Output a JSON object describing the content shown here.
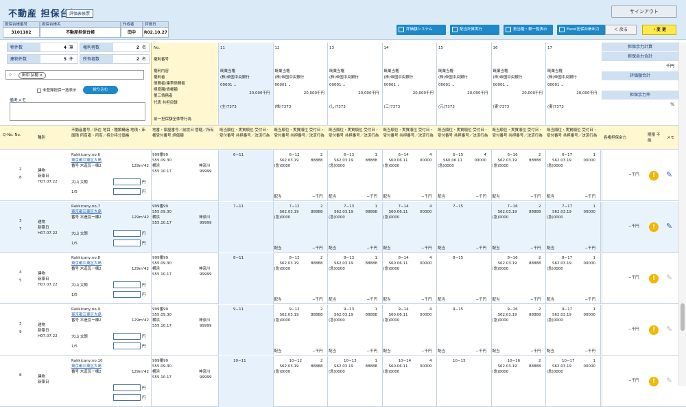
{
  "app": {
    "title": "不動産 担保台帳",
    "badge": "評価表帳票",
    "signout": "サインアウト"
  },
  "master": [
    {
      "label": "担保台帳番号",
      "value": "3101102"
    },
    {
      "label": "担保台帳名",
      "value": "不動産担保台帳"
    },
    {
      "label": "作成者",
      "value": "田中"
    },
    {
      "label": "評価日",
      "value": "R02.10.27"
    }
  ],
  "toolbar": {
    "btn1": "評価額システム",
    "btn2": "配当計算実行",
    "btn3": "抵当権・根一覧表示",
    "btn4": "Excel担保台帳出力",
    "back": "＜ 戻る",
    "change": "・変 更"
  },
  "stats": [
    {
      "k": "物件数",
      "n": "4",
      "u": "筆",
      "k2": "権利者数",
      "n2": "2",
      "u2": "名"
    },
    {
      "k": "建物件数",
      "n": "5",
      "u": "件",
      "k2": "所有者数",
      "n2": "2",
      "u2": "名"
    }
  ],
  "search": {
    "chip": "田中 弘樹 ×",
    "checkbox": "未登録担保一括表示",
    "narrow": "絞り込む",
    "memo_label": "備考メモ"
  },
  "colhead": {
    "no": "No.",
    "right_no": "権利番号",
    "lines": [
      "権利内容",
      "権利者",
      "債務者/連帯債務者",
      "極度額/債権額",
      "第三債務者",
      "代表 共担目録"
    ],
    "foot": "前一担保額全体等行為"
  },
  "cols": [
    {
      "n": "11",
      "a": "既業当権",
      "b": "(株)帝国中央銀行",
      "c": "00001",
      "amt": "20,000千円",
      "d": "(主)7373"
    },
    {
      "n": "12",
      "a": "既業当権",
      "b": "(株)帝国中央銀行",
      "c": "00001",
      "amt": "20,000千円",
      "d": "(株)7373"
    },
    {
      "n": "13",
      "a": "既業当権",
      "b": "(株)帝国中央銀行",
      "c": "00001",
      "amt": "20,000千円",
      "d": "(し)7373"
    },
    {
      "n": "14",
      "a": "既業当権",
      "b": "(株)帝国中央銀行",
      "c": "00001",
      "amt": "20,000千円",
      "d": "(三)7373"
    },
    {
      "n": "15",
      "a": "既業当権",
      "b": "(株)帝国中央銀行",
      "c": "00001",
      "amt": "20,000千円",
      "d": "(元)7373"
    },
    {
      "n": "16",
      "a": "既業当権",
      "b": "(株)帝国中央銀行",
      "c": "00001",
      "amt": "20,000千円",
      "d": "(妻)7373"
    },
    {
      "n": "17",
      "a": "既業当権",
      "b": "(株)帝国中央銀行",
      "c": "00001",
      "amt": "20,000千円",
      "d": "(妻)7373"
    }
  ],
  "subhead": {
    "c1": "Q-No. No.",
    "c2": "種別",
    "c3": "不動産番号／所在 地目・種類構造 地積・床面積 所有者・所有／持分持分価格",
    "c4": "地番・家屋番号／前提日 管轄／所有権受付番号 評価額",
    "col": "既当順位・実質順位 受付日・受付番号 共担番号／決済行為",
    "rp1": "各権担保余力",
    "rp2": "期限 不能",
    "rp3": "メモ"
  },
  "rightpanel": {
    "h1": "担保余力計算",
    "h2": "担保余力合計",
    "v2": "千円",
    "h3": "評価額合計",
    "h4": "担保余力率",
    "v4": "%"
  },
  "rows": [
    {
      "qno": "2",
      "no": "8",
      "kind": "建物",
      "kind2": "新築日",
      "date": "H07.07.22",
      "ref": "Rakkicany,no,6",
      "link": "東京都江東区大島",
      "l3": "番号 木造瓦ー棟2",
      "area": "129m²42",
      "own": "大山 太朗",
      "frac": "1/5",
      "b1": "999番99",
      "b2": "S55.09.30",
      "b3": "横浜",
      "b4": "神奈川",
      "b5": "S55.10.17",
      "b6": "99999",
      "first": "6−11",
      "cells": [
        {
          "t": "6−12",
          "n": "2",
          "d": "S62.03.19",
          "v": "88888",
          "r": "(急)0000"
        },
        {
          "t": "6−13",
          "n": "1",
          "d": "S62.03.19",
          "v": "88888",
          "r": "(急)0000"
        },
        {
          "t": "6−14",
          "n": "4",
          "d": "S60.06.11",
          "v": "00000",
          "r": "(急)0000"
        },
        {
          "t": "6−15",
          "n": "4",
          "d": "S60.06.11",
          "v": "00000",
          "r": "(急)0000"
        },
        {
          "t": "6−16",
          "n": "2",
          "d": "S62.03.19",
          "v": "88888",
          "r": "(急)0000"
        },
        {
          "t": "6−17",
          "n": "1",
          "d": "S62.03.19",
          "v": "00000",
          "r": "(急)0000"
        }
      ],
      "foot": "配当",
      "yen": "−千円",
      "margin": "−千円",
      "alt": false
    },
    {
      "qno": "3",
      "no": "7",
      "kind": "建物",
      "kind2": "新築日",
      "date": "H07.07.22",
      "ref": "Rakkicany,no,7",
      "link": "東京都江東区大島",
      "l3": "番号 木造瓦ー棟2",
      "area": "129m²42",
      "own": "大山 太朗",
      "frac": "1/5",
      "b1": "999番99",
      "b2": "S55.09.30",
      "b3": "横浜",
      "b4": "神奈川",
      "b5": "S55.10.17",
      "b6": "99999",
      "first": "7−11",
      "cells": [
        {
          "t": "7−12",
          "n": "2",
          "d": "S62.03.19",
          "v": "88888",
          "r": "(急)0000"
        },
        {
          "t": "7−13",
          "n": "1",
          "d": "S62.03.19",
          "v": "88888",
          "r": "(急)0000"
        },
        {
          "t": "7−14",
          "n": "4",
          "d": "S60.06.11",
          "v": "00000",
          "r": "(急)0000"
        },
        {
          "t": "7−15",
          "n": "",
          "d": "",
          "v": "",
          "r": ""
        },
        {
          "t": "7−16",
          "n": "2",
          "d": "S62.03.19",
          "v": "88888",
          "r": "(急)0000"
        },
        {
          "t": "7−17",
          "n": "1",
          "d": "S62.03.19",
          "v": "00000",
          "r": "(急)0000"
        }
      ],
      "foot": "配当",
      "yen": "−千円",
      "margin": "−千円",
      "alt": true
    },
    {
      "qno": "4",
      "no": "5",
      "kind": "建物",
      "kind2": "新築日",
      "date": "H07.07.22",
      "ref": "Rakkicany,no,8",
      "link": "東京都江東区大島",
      "l3": "番号 木造瓦ー棟2",
      "area": "129m²42",
      "own": "大山 太朗",
      "frac": "1/5",
      "b1": "999番99",
      "b2": "S55.09.30",
      "b3": "横浜",
      "b4": "神奈川",
      "b5": "S55.10.17",
      "b6": "99999",
      "first": "8−11",
      "cells": [
        {
          "t": "8−12",
          "n": "2",
          "d": "S62.03.19",
          "v": "88888",
          "r": "(急)0000"
        },
        {
          "t": "8−13",
          "n": "1",
          "d": "S62.03.19",
          "v": "88888",
          "r": "(急)0000"
        },
        {
          "t": "8−14",
          "n": "4",
          "d": "S60.06.11",
          "v": "00000",
          "r": "(急)0000"
        },
        {
          "t": "8−15",
          "n": "",
          "d": "",
          "v": "",
          "r": ""
        },
        {
          "t": "8−16",
          "n": "2",
          "d": "S62.03.19",
          "v": "88888",
          "r": "(急)0000"
        },
        {
          "t": "8−17",
          "n": "1",
          "d": "S62.03.19",
          "v": "00000",
          "r": "(急)0000"
        }
      ],
      "foot": "配当",
      "yen": "−千円",
      "margin": "−千円",
      "alt": false
    },
    {
      "qno": "3",
      "no": "9",
      "kind": "建物",
      "kind2": "新築日",
      "date": "H07.07.22",
      "ref": "Rakkicany,no,9",
      "link": "東京都江東区大島",
      "l3": "番号 木造瓦ー棟2",
      "area": "129m²42",
      "own": "大山 太朗",
      "frac": "1/5",
      "b1": "999番99",
      "b2": "S55.09.30",
      "b3": "横浜",
      "b4": "神奈川",
      "b5": "S55.10.17",
      "b6": "99999",
      "first": "9−11",
      "cells": [
        {
          "t": "9−12",
          "n": "2",
          "d": "S62.03.19",
          "v": "88888",
          "r": "(急)0000"
        },
        {
          "t": "9−13",
          "n": "1",
          "d": "S62.03.19",
          "v": "88888",
          "r": "(急)0000"
        },
        {
          "t": "9−14",
          "n": "4",
          "d": "S60.06.11",
          "v": "00000",
          "r": "(急)0000"
        },
        {
          "t": "9−15",
          "n": "",
          "d": "",
          "v": "",
          "r": ""
        },
        {
          "t": "9−16",
          "n": "2",
          "d": "S62.03.19",
          "v": "88888",
          "r": "(急)0000"
        },
        {
          "t": "9−17",
          "n": "1",
          "d": "S62.03.19",
          "v": "00000",
          "r": "(急)0000"
        }
      ],
      "foot": "配当",
      "yen": "−千円",
      "margin": "−千円",
      "alt": false
    },
    {
      "qno": "8",
      "no": "",
      "kind": "建物",
      "kind2": "新築日",
      "date": "",
      "ref": "Rakkicany,no,10",
      "link": "東京都江東区大島",
      "l3": "番号 木造瓦ー棟2",
      "area": "129m²42",
      "own": "",
      "frac": "",
      "b1": "999番99",
      "b2": "S55.09.30",
      "b3": "横浜",
      "b4": "神奈川",
      "b5": "S55.10.17",
      "b6": "99999",
      "first": "10−11",
      "cells": [
        {
          "t": "10−12",
          "n": "2",
          "d": "S62.03.19",
          "v": "88888",
          "r": "(急)0000"
        },
        {
          "t": "10−13",
          "n": "1",
          "d": "S62.03.19",
          "v": "88888",
          "r": "(急)0000"
        },
        {
          "t": "10−14",
          "n": "4",
          "d": "S60.06.11",
          "v": "00000",
          "r": "(急)0000"
        },
        {
          "t": "10−15",
          "n": "",
          "d": "",
          "v": "",
          "r": ""
        },
        {
          "t": "10−16",
          "n": "2",
          "d": "S62.03.19",
          "v": "88888",
          "r": "(急)0000"
        },
        {
          "t": "10−17",
          "n": "1",
          "d": "S62.03.19",
          "v": "00000",
          "r": "(急)0000"
        }
      ],
      "foot": "",
      "yen": "−千円",
      "margin": "−千円",
      "alt": false
    }
  ]
}
